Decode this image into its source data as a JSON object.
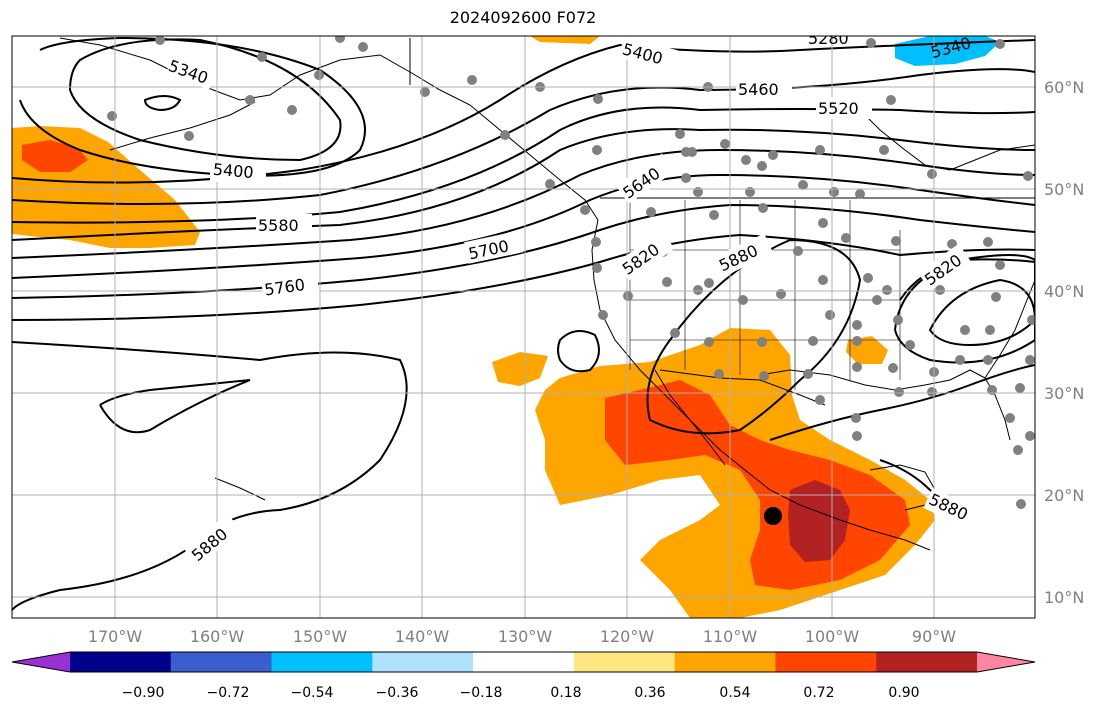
{
  "title": "2024092600 F072",
  "lat_labels": [
    "60°N",
    "50°N",
    "40°N",
    "30°N",
    "20°N",
    "10°N"
  ],
  "lon_labels": [
    "170°W",
    "160°W",
    "150°W",
    "140°W",
    "130°W",
    "120°W",
    "110°W",
    "100°W",
    "90°W"
  ],
  "contour_labels": [
    "5340",
    "5400",
    "5400",
    "5460",
    "5520",
    "5580",
    "5640",
    "5700",
    "5760",
    "5820",
    "5880",
    "5880",
    "5880",
    "5820",
    "5340",
    "5280"
  ],
  "colorbar": {
    "ticks": [
      "−0.90",
      "−0.72",
      "−0.54",
      "−0.36",
      "−0.18",
      "0.18",
      "0.36",
      "0.54",
      "0.72",
      "0.90"
    ],
    "colors": [
      "#9b30d0",
      "#00008b",
      "#3a5fcd",
      "#00bfff",
      "#b0e2ff",
      "#ffffff",
      "#ffe680",
      "#ffa500",
      "#ff4500",
      "#b22222",
      "#ff85a2"
    ]
  },
  "colors": {
    "orange": "#ffa500",
    "red_orange": "#ff4500",
    "dark_red": "#b22222",
    "blue": "#00bfff",
    "station_gray": "#808080",
    "grid": "#b0b0b0"
  }
}
